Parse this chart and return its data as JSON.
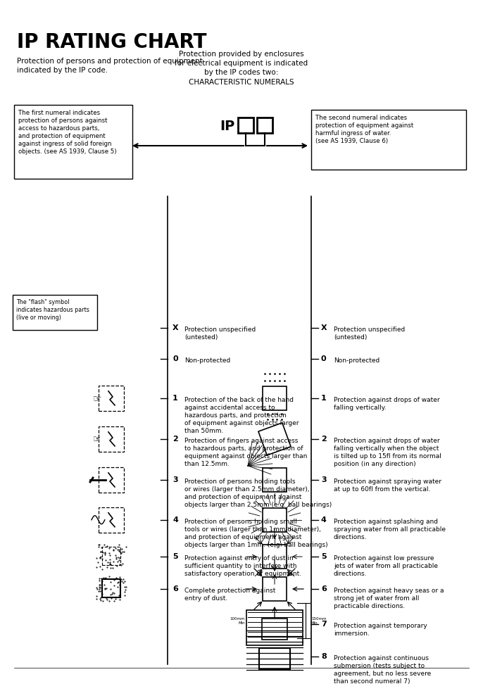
{
  "title": "IP RATING CHART",
  "subtitle1": "Protection of persons and protection of equipment\nindicated by the IP code.",
  "subtitle2": "Protection provided by enclosures\nfor electrical equipment is indicated\nby the IP codes two:\nCHARACTERISTIC NUMERALS",
  "left_box_text": "The first numeral indicates\nprotection of persons against\naccess to hazardous parts,\nand protection of equipment\nagainst ingress of solid foreign\nobjects. (see AS 1939, Clause 5)",
  "right_box_text": "The second numeral indicates\nprotection of equipment against\nharmful ingress of water.\n(see AS 1939, Clause 6)",
  "flash_box_text": "The \"flash\" symbol\nindicates hazardous parts\n(live or moving)",
  "left_entries": [
    {
      "num": "X",
      "desc": "Protection unspecified\n(untested)",
      "yf": 0.742
    },
    {
      "num": "0",
      "desc": "Non-protected",
      "yf": 0.672
    },
    {
      "num": "1",
      "desc": "Protection of the back of the hand\nagainst accidental access to\nhazardous parts, and protection\nof equipment against objects larger\nthan 50mm.",
      "yf": 0.585
    },
    {
      "num": "2",
      "desc": "Protection of fingers against access\nto hazardous parts, and protection of\nequipment against objects larger than\nthan 12.5mm.",
      "yf": 0.494
    },
    {
      "num": "3",
      "desc": "Protection of persons holding tools\nor wires (larger than 2.5mm diameter),\nand protection of equipment against\nobjects larger than 2.5mm (e.g. ball bearings)",
      "yf": 0.403
    },
    {
      "num": "4",
      "desc": "Protection of persons holding small\ntools or wires (larger than 1mm diameter),\nand protection of equipment against\nobjects larger than 1mm. (e.g. ball bearings)",
      "yf": 0.314
    },
    {
      "num": "5",
      "desc": "Protection against entry of dust in\nsufficient quantity to interfere with\nsatisfactory operation of equipment.",
      "yf": 0.232
    },
    {
      "num": "6",
      "desc": "Complete protection against\nentry of dust.",
      "yf": 0.16
    }
  ],
  "right_entries": [
    {
      "num": "X",
      "desc": "Protection unspecified\n(untested)",
      "yf": 0.742
    },
    {
      "num": "0",
      "desc": "Non-protected",
      "yf": 0.672
    },
    {
      "num": "1",
      "desc": "Protection against drops of water\nfalling vertically.",
      "yf": 0.585
    },
    {
      "num": "2",
      "desc": "Protection against drops of water\nfalling vertically when the object\nis tilted up to 15fl from its normal\nposition (in any direction)",
      "yf": 0.494
    },
    {
      "num": "3",
      "desc": "Protection against spraying water\nat up to 60fl from the vertical.",
      "yf": 0.403
    },
    {
      "num": "4",
      "desc": "Protection against splashing and\nspraying water from all practicable\ndirections.",
      "yf": 0.314
    },
    {
      "num": "5",
      "desc": "Protection against low pressure\njets of water from all practicable\ndirections.",
      "yf": 0.232
    },
    {
      "num": "6",
      "desc": "Protection against heavy seas or a\nstrong jet of water from all\npracticable directions.",
      "yf": 0.16
    },
    {
      "num": "7",
      "desc": "Protection against temporary\nimmersion.",
      "yf": 0.082
    },
    {
      "num": "8",
      "desc": "Protection against continuous\nsubmersion (tests subject to\nagreement, but no less severe\nthan second numeral 7)",
      "yf": 0.01
    }
  ],
  "bg_color": "#ffffff",
  "text_color": "#000000"
}
